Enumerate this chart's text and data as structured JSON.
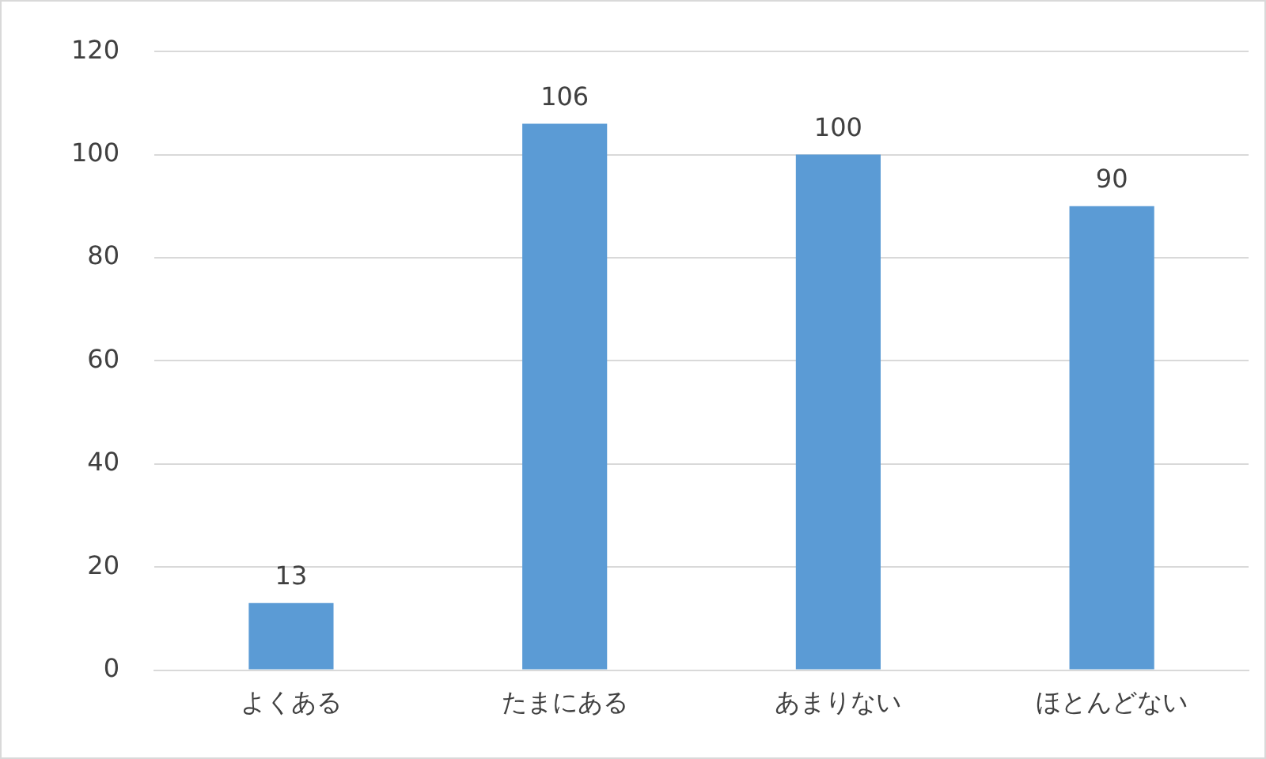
{
  "chart_data": {
    "type": "bar",
    "categories": [
      "よくある",
      "たまにある",
      "あまりない",
      "ほとんどない"
    ],
    "values": [
      13,
      106,
      100,
      90
    ],
    "color": "#5b9bd5",
    "ylim": [
      0,
      120
    ],
    "yticks": [
      0,
      20,
      40,
      60,
      80,
      100,
      120
    ],
    "grid": "y",
    "data_labels": true,
    "legend": false
  }
}
